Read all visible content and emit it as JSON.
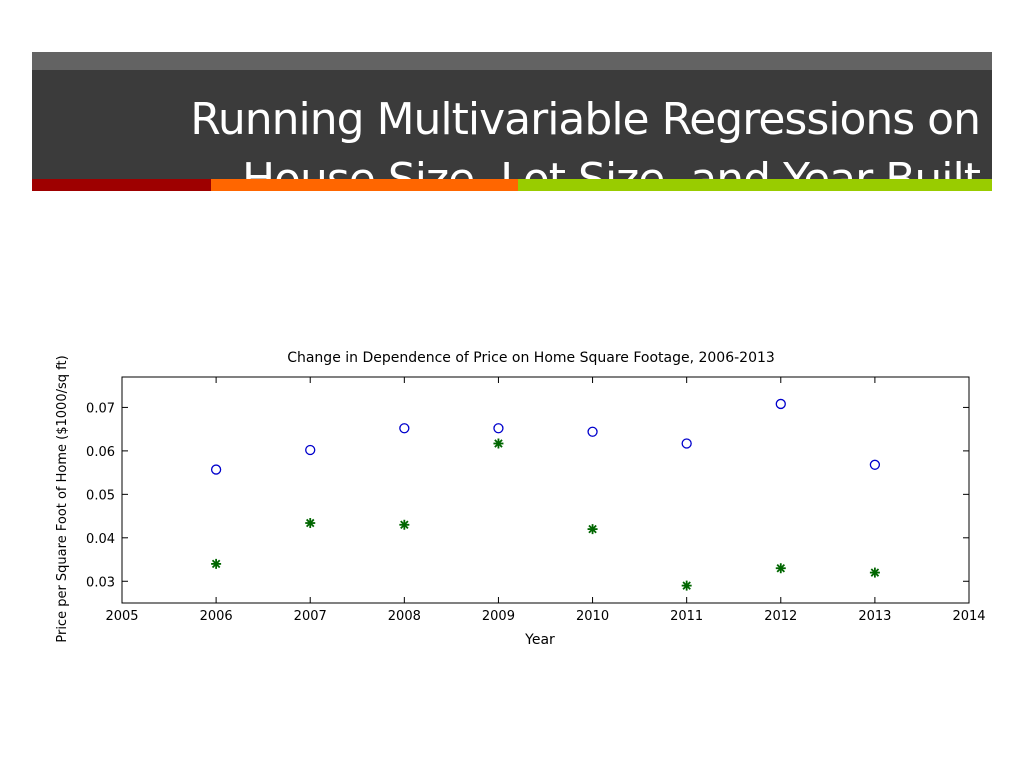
{
  "slide": {
    "title_line1": "Running Multivariable Regressions on",
    "title_line2": "House Size, Lot Size, and Year Built",
    "accent_colors": [
      "#9e0000",
      "#ff6600",
      "#99cc00"
    ]
  },
  "chart_data": {
    "type": "scatter",
    "title": "Change in Dependence of Price on Home Square Footage, 2006-2013",
    "xlabel": "Year",
    "ylabel": "Price per Square Foot of Home ($1000/sq ft)",
    "xlim": [
      2005,
      2014
    ],
    "ylim": [
      0.025,
      0.077
    ],
    "xticks": [
      2005,
      2006,
      2007,
      2008,
      2009,
      2010,
      2011,
      2012,
      2013,
      2014
    ],
    "yticks": [
      0.03,
      0.04,
      0.05,
      0.06,
      0.07
    ],
    "ytick_labels": [
      "0.03",
      "0.04",
      "0.05",
      "0.06",
      "0.07"
    ],
    "grid": false,
    "series": [
      {
        "marker": "circle",
        "color": "#0000cc",
        "x": [
          2006,
          2007,
          2008,
          2009,
          2010,
          2011,
          2012,
          2013
        ],
        "y": [
          0.0557,
          0.0602,
          0.0652,
          0.0652,
          0.0644,
          0.0617,
          0.0708,
          0.0568
        ]
      },
      {
        "marker": "asterisk",
        "color": "#006600",
        "x": [
          2006,
          2007,
          2008,
          2009,
          2010,
          2011,
          2012,
          2013
        ],
        "y": [
          0.034,
          0.0434,
          0.043,
          0.0617,
          0.042,
          0.029,
          0.033,
          0.032
        ]
      }
    ]
  }
}
